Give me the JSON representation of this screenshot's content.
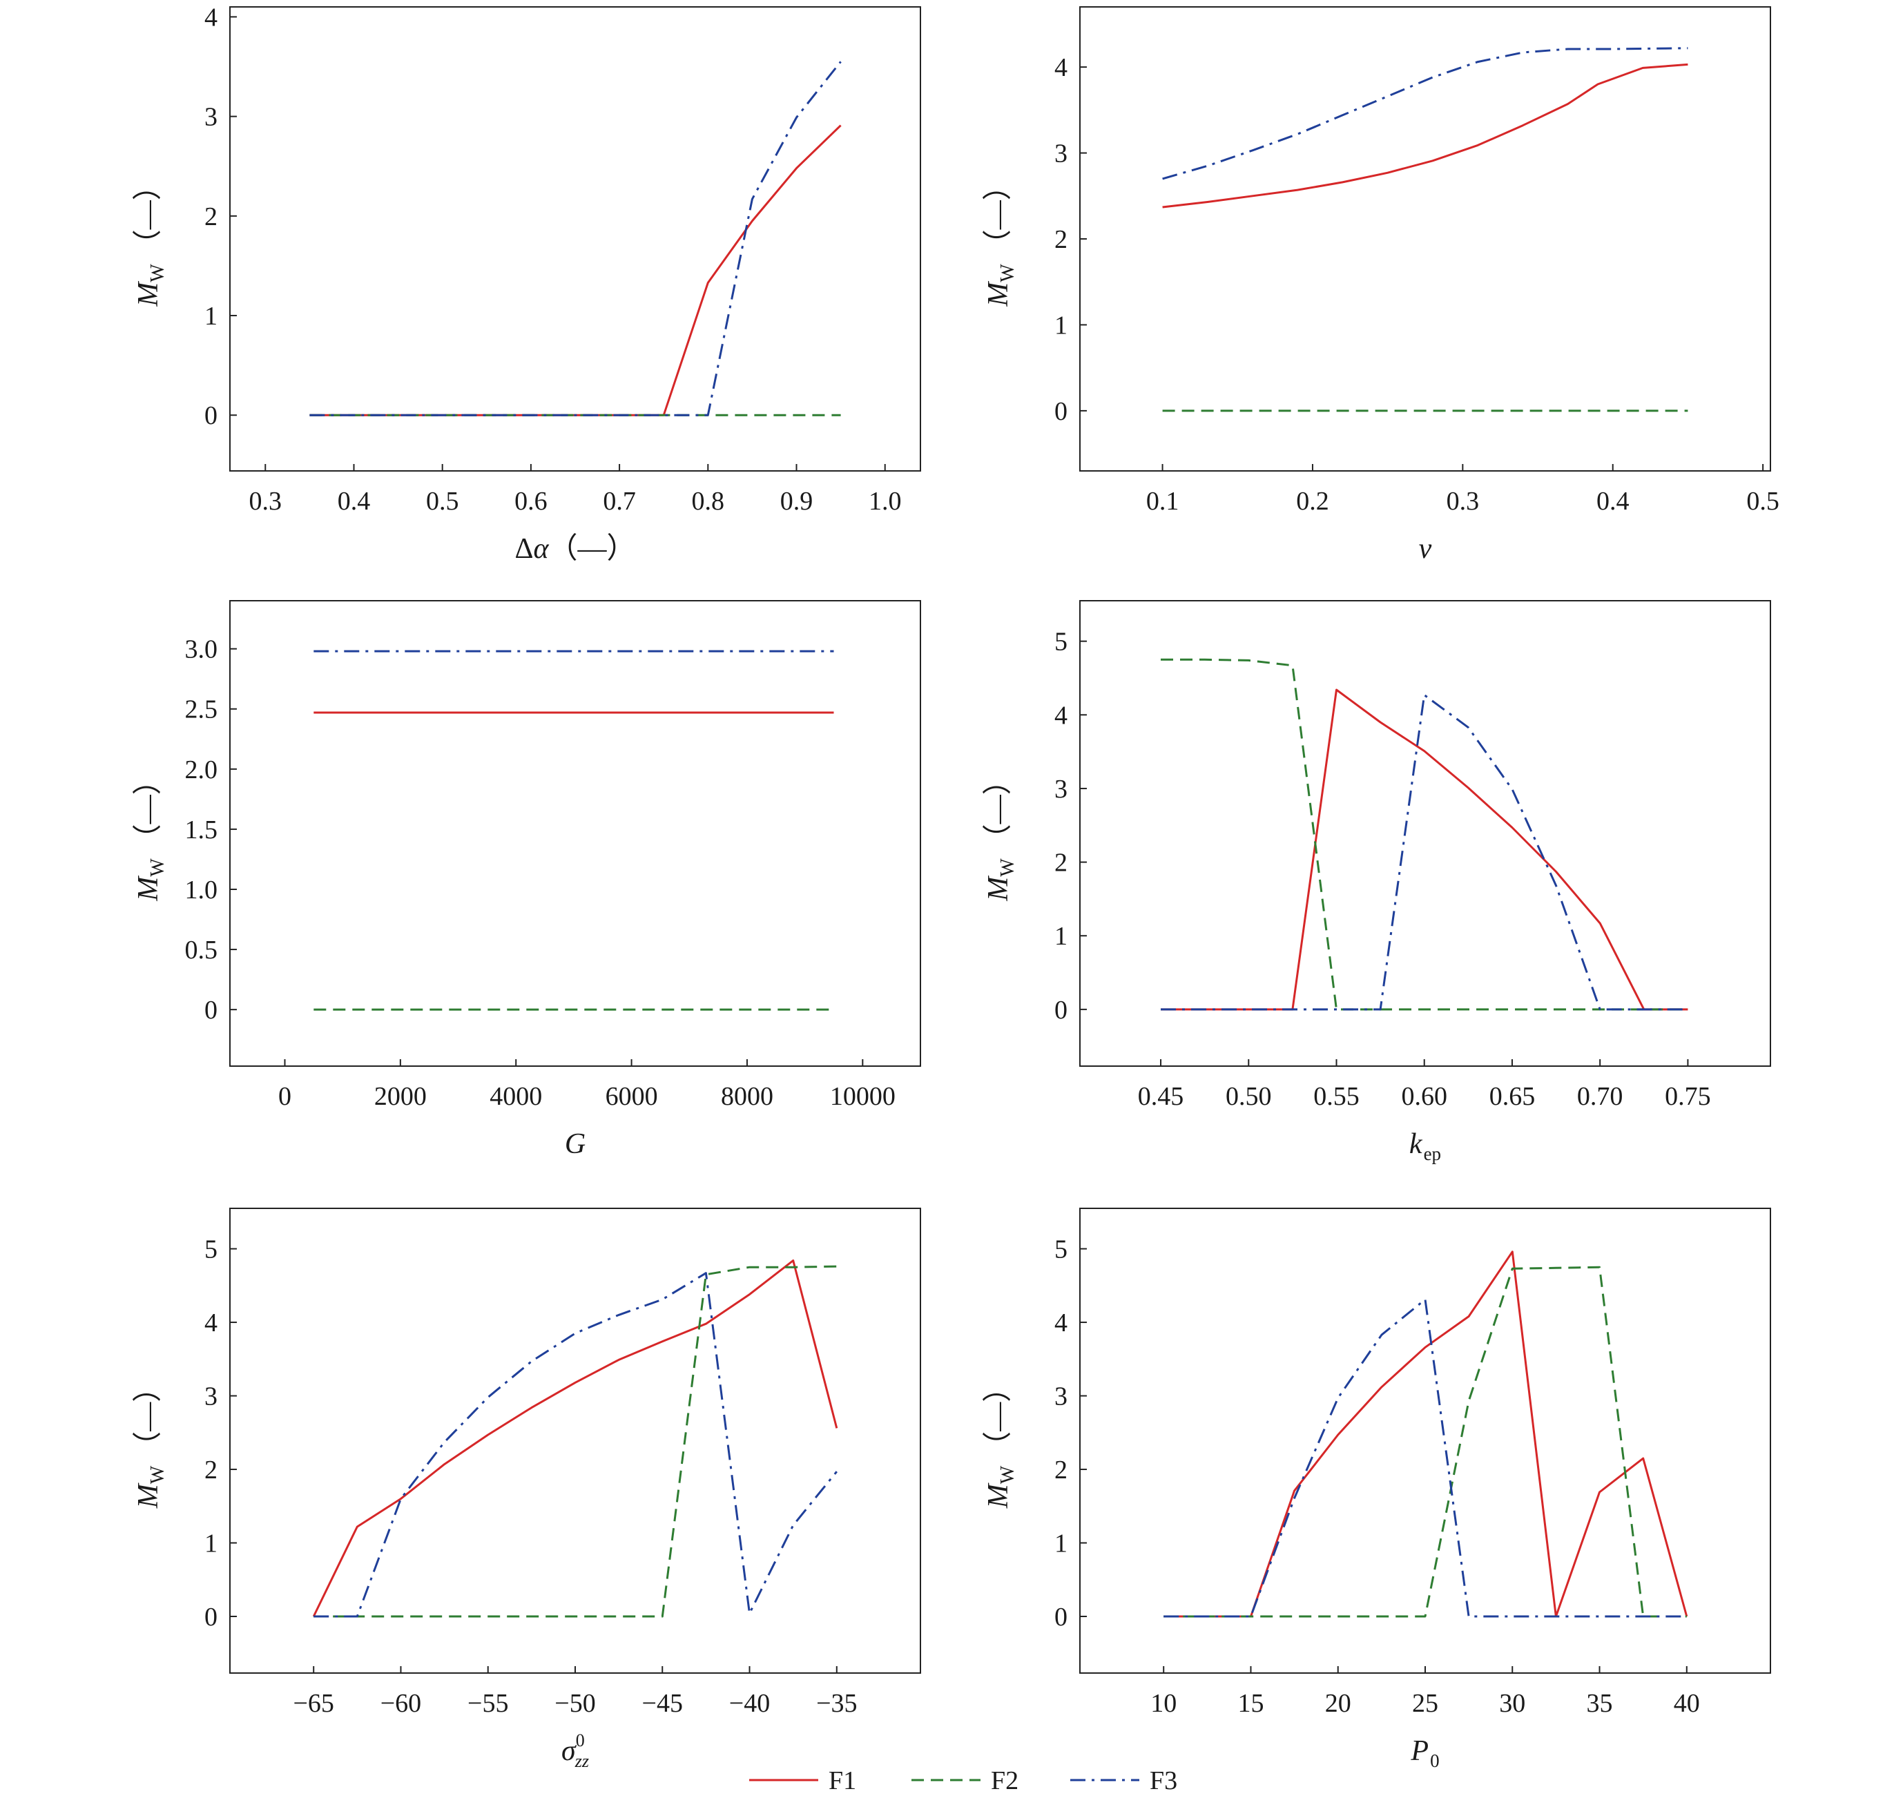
{
  "colors": {
    "F1": "#d62728",
    "F2": "#2e7d32",
    "F3": "#1f3f99"
  },
  "legend": [
    {
      "key": "F1",
      "label": "F1",
      "dash": "solid"
    },
    {
      "key": "F2",
      "label": "F2",
      "dash": "dashed"
    },
    {
      "key": "F3",
      "label": "F3",
      "dash": "dashdot"
    }
  ],
  "chart_data": [
    {
      "type": "line",
      "xlabel": {
        "main": "Δα（—）",
        "italic_part": "α",
        "sub": ""
      },
      "ylabel": {
        "main": "M",
        "sub": "W",
        "unit": "（—）"
      },
      "xlim": [
        0.26,
        1.04
      ],
      "ylim": [
        -0.56,
        4.1
      ],
      "xticks": [
        0.3,
        0.4,
        0.5,
        0.6,
        0.7,
        0.8,
        0.9,
        1.0
      ],
      "xtick_labels": [
        "0.3",
        "0.4",
        "0.5",
        "0.6",
        "0.7",
        "0.8",
        "0.9",
        "1.0"
      ],
      "yticks": [
        0,
        1,
        2,
        3,
        4
      ],
      "ytick_labels": [
        "0",
        "1",
        "2",
        "3",
        "4"
      ],
      "series": [
        {
          "key": "F1",
          "x": [
            0.35,
            0.4,
            0.45,
            0.5,
            0.55,
            0.6,
            0.65,
            0.7,
            0.75,
            0.8,
            0.85,
            0.9,
            0.95
          ],
          "y": [
            0,
            0,
            0,
            0,
            0,
            0,
            0,
            0,
            0,
            1.33,
            1.95,
            2.48,
            2.91
          ]
        },
        {
          "key": "F2",
          "x": [
            0.35,
            0.4,
            0.45,
            0.5,
            0.55,
            0.6,
            0.65,
            0.7,
            0.75,
            0.8,
            0.85,
            0.9,
            0.95
          ],
          "y": [
            0,
            0,
            0,
            0,
            0,
            0,
            0,
            0,
            0,
            0,
            0,
            0,
            0
          ]
        },
        {
          "key": "F3",
          "x": [
            0.35,
            0.4,
            0.45,
            0.5,
            0.55,
            0.6,
            0.65,
            0.7,
            0.75,
            0.8,
            0.85,
            0.9,
            0.95
          ],
          "y": [
            0,
            0,
            0,
            0,
            0,
            0,
            0,
            0,
            0,
            0,
            2.17,
            2.99,
            3.55
          ]
        }
      ]
    },
    {
      "type": "line",
      "xlabel": {
        "main": "v",
        "italic": true,
        "sub": ""
      },
      "ylabel": {
        "main": "M",
        "sub": "W",
        "unit": "（—）"
      },
      "xlim": [
        0.045,
        0.505
      ],
      "ylim": [
        -0.7,
        4.7
      ],
      "xticks": [
        0.1,
        0.2,
        0.3,
        0.4,
        0.5
      ],
      "xtick_labels": [
        "0.1",
        "0.2",
        "0.3",
        "0.4",
        "0.5"
      ],
      "yticks": [
        0,
        1,
        2,
        3,
        4
      ],
      "ytick_labels": [
        "0",
        "1",
        "2",
        "3",
        "4"
      ],
      "series": [
        {
          "key": "F1",
          "x": [
            0.1,
            0.13,
            0.16,
            0.19,
            0.22,
            0.25,
            0.28,
            0.31,
            0.34,
            0.37,
            0.39,
            0.42,
            0.45
          ],
          "y": [
            2.37,
            2.43,
            2.5,
            2.57,
            2.66,
            2.77,
            2.91,
            3.09,
            3.32,
            3.57,
            3.8,
            3.99,
            4.03
          ]
        },
        {
          "key": "F2",
          "x": [
            0.1,
            0.45
          ],
          "y": [
            0,
            0
          ]
        },
        {
          "key": "F3",
          "x": [
            0.1,
            0.13,
            0.16,
            0.19,
            0.22,
            0.25,
            0.28,
            0.31,
            0.34,
            0.37,
            0.4,
            0.45
          ],
          "y": [
            2.7,
            2.85,
            3.03,
            3.22,
            3.44,
            3.66,
            3.88,
            4.06,
            4.17,
            4.21,
            4.21,
            4.22
          ]
        }
      ]
    },
    {
      "type": "line",
      "xlabel": {
        "main": "G",
        "italic": true,
        "sub": ""
      },
      "ylabel": {
        "main": "M",
        "sub": "W",
        "unit": "（—）"
      },
      "xlim": [
        -950,
        11000
      ],
      "ylim": [
        -0.47,
        3.4
      ],
      "xticks": [
        0,
        2000,
        4000,
        6000,
        8000,
        10000
      ],
      "xtick_labels": [
        "0",
        "2000",
        "4000",
        "6000",
        "8000",
        "10000"
      ],
      "yticks": [
        0,
        0.5,
        1.0,
        1.5,
        2.0,
        2.5,
        3.0
      ],
      "ytick_labels": [
        "0",
        "0.5",
        "1.0",
        "1.5",
        "2.0",
        "2.5",
        "3.0"
      ],
      "series": [
        {
          "key": "F1",
          "x": [
            500,
            9500
          ],
          "y": [
            2.47,
            2.47
          ]
        },
        {
          "key": "F2",
          "x": [
            500,
            9500
          ],
          "y": [
            0,
            0
          ]
        },
        {
          "key": "F3",
          "x": [
            500,
            9500
          ],
          "y": [
            2.98,
            2.98
          ]
        }
      ]
    },
    {
      "type": "line",
      "xlabel": {
        "main": "k",
        "italic": true,
        "sub": "ep"
      },
      "ylabel": {
        "main": "M",
        "sub": "W",
        "unit": "（—）"
      },
      "xlim": [
        0.404,
        0.797
      ],
      "ylim": [
        -0.77,
        5.55
      ],
      "xticks": [
        0.45,
        0.5,
        0.55,
        0.6,
        0.65,
        0.7,
        0.75
      ],
      "xtick_labels": [
        "0.45",
        "0.50",
        "0.55",
        "0.60",
        "0.65",
        "0.70",
        "0.75"
      ],
      "yticks": [
        0,
        1,
        2,
        3,
        4,
        5
      ],
      "ytick_labels": [
        "0",
        "1",
        "2",
        "3",
        "4",
        "5"
      ],
      "series": [
        {
          "key": "F1",
          "x": [
            0.45,
            0.475,
            0.5,
            0.525,
            0.55,
            0.575,
            0.6,
            0.625,
            0.65,
            0.675,
            0.7,
            0.725,
            0.75
          ],
          "y": [
            0,
            0,
            0,
            0,
            4.34,
            3.9,
            3.51,
            3.01,
            2.47,
            1.87,
            1.17,
            0,
            0
          ]
        },
        {
          "key": "F2",
          "x": [
            0.45,
            0.475,
            0.5,
            0.525,
            0.55,
            0.575,
            0.6,
            0.625,
            0.65,
            0.675,
            0.7,
            0.725,
            0.75
          ],
          "y": [
            4.75,
            4.75,
            4.74,
            4.67,
            0,
            0,
            0,
            0,
            0,
            0,
            0,
            0,
            0
          ]
        },
        {
          "key": "F3",
          "x": [
            0.45,
            0.475,
            0.5,
            0.525,
            0.55,
            0.575,
            0.6,
            0.625,
            0.65,
            0.675,
            0.7,
            0.725,
            0.75
          ],
          "y": [
            0,
            0,
            0,
            0,
            0,
            0,
            4.27,
            3.83,
            2.99,
            1.68,
            0,
            0,
            0
          ]
        }
      ]
    },
    {
      "type": "line",
      "xlabel": {
        "main": "σ",
        "italic": true,
        "sub": "zz",
        "sup": "0"
      },
      "ylabel": {
        "main": "M",
        "sub": "W",
        "unit": "（—）"
      },
      "xlim": [
        -69.8,
        -30.2
      ],
      "ylim": [
        -0.77,
        5.55
      ],
      "xticks": [
        -65,
        -60,
        -55,
        -50,
        -45,
        -40,
        -35
      ],
      "xtick_labels": [
        "−65",
        "−60",
        "−55",
        "−50",
        "−45",
        "−40",
        "−35"
      ],
      "yticks": [
        0,
        1,
        2,
        3,
        4,
        5
      ],
      "ytick_labels": [
        "0",
        "1",
        "2",
        "3",
        "4",
        "5"
      ],
      "series": [
        {
          "key": "F1",
          "x": [
            -65,
            -62.5,
            -60,
            -57.5,
            -55,
            -52.5,
            -50,
            -47.5,
            -45,
            -42.5,
            -40,
            -37.5,
            -35
          ],
          "y": [
            0,
            1.22,
            1.6,
            2.07,
            2.47,
            2.84,
            3.18,
            3.49,
            3.74,
            3.98,
            4.38,
            4.84,
            2.56
          ]
        },
        {
          "key": "F2",
          "x": [
            -65,
            -62.5,
            -60,
            -57.5,
            -55,
            -52.5,
            -50,
            -47.5,
            -45,
            -42.5,
            -40,
            -37.5,
            -35
          ],
          "y": [
            0,
            0,
            0,
            0,
            0,
            0,
            0,
            0,
            0,
            4.65,
            4.75,
            4.75,
            4.76
          ]
        },
        {
          "key": "F3",
          "x": [
            -65,
            -62.5,
            -60,
            -57.5,
            -55,
            -52.5,
            -50,
            -47.5,
            -45,
            -42.5,
            -40,
            -37.5,
            -35
          ],
          "y": [
            0,
            0,
            1.6,
            2.37,
            2.98,
            3.47,
            3.85,
            4.1,
            4.31,
            4.67,
            0.04,
            1.24,
            1.97
          ]
        }
      ]
    },
    {
      "type": "line",
      "xlabel": {
        "main": "P",
        "italic": true,
        "sub": "0"
      },
      "ylabel": {
        "main": "M",
        "sub": "W",
        "unit": "（—）"
      },
      "xlim": [
        5.2,
        44.8
      ],
      "ylim": [
        -0.77,
        5.55
      ],
      "xticks": [
        10,
        15,
        20,
        25,
        30,
        35,
        40
      ],
      "xtick_labels": [
        "10",
        "15",
        "20",
        "25",
        "30",
        "35",
        "40"
      ],
      "yticks": [
        0,
        1,
        2,
        3,
        4,
        5
      ],
      "ytick_labels": [
        "0",
        "1",
        "2",
        "3",
        "4",
        "5"
      ],
      "series": [
        {
          "key": "F1",
          "x": [
            10,
            12.5,
            15,
            17.5,
            20,
            22.5,
            25,
            27.5,
            30,
            32.5,
            35,
            37.5,
            40
          ],
          "y": [
            0,
            0,
            0,
            1.71,
            2.47,
            3.12,
            3.66,
            4.08,
            4.96,
            0,
            1.69,
            2.15,
            0
          ]
        },
        {
          "key": "F2",
          "x": [
            10,
            12.5,
            15,
            17.5,
            20,
            22.5,
            25,
            27.5,
            30,
            32.5,
            35,
            37.5,
            40
          ],
          "y": [
            0,
            0,
            0,
            0,
            0,
            0,
            0,
            2.93,
            4.73,
            4.74,
            4.75,
            0,
            0
          ]
        },
        {
          "key": "F3",
          "x": [
            10,
            12.5,
            15,
            17.5,
            20,
            22.5,
            25,
            27.5,
            30,
            32.5,
            35,
            37.5,
            40
          ],
          "y": [
            0,
            0,
            0,
            1.61,
            2.97,
            3.83,
            4.31,
            0,
            0,
            0,
            0,
            0,
            0
          ]
        }
      ]
    }
  ]
}
